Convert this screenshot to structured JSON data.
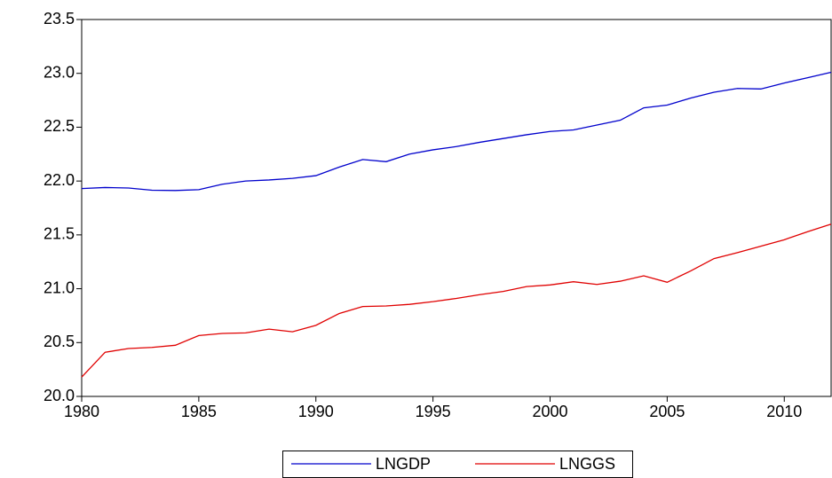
{
  "chart_data": {
    "type": "line",
    "x": [
      1980,
      1981,
      1982,
      1983,
      1984,
      1985,
      1986,
      1987,
      1988,
      1989,
      1990,
      1991,
      1992,
      1993,
      1994,
      1995,
      1996,
      1997,
      1998,
      1999,
      2000,
      2001,
      2002,
      2003,
      2004,
      2005,
      2006,
      2007,
      2008,
      2009,
      2010,
      2011,
      2012
    ],
    "series": [
      {
        "name": "LNGDP",
        "color": "#0000cc",
        "values": [
          21.93,
          21.94,
          21.935,
          21.915,
          21.912,
          21.92,
          21.97,
          22.0,
          22.01,
          22.025,
          22.05,
          22.13,
          22.2,
          22.18,
          22.25,
          22.29,
          22.32,
          22.36,
          22.395,
          22.43,
          22.46,
          22.475,
          22.52,
          22.565,
          22.68,
          22.705,
          22.77,
          22.825,
          22.86,
          22.855,
          22.91,
          22.96,
          23.01
        ]
      },
      {
        "name": "LNGGS",
        "color": "#e00000",
        "values": [
          20.18,
          20.41,
          20.445,
          20.455,
          20.475,
          20.565,
          20.585,
          20.59,
          20.625,
          20.6,
          20.66,
          20.77,
          20.835,
          20.84,
          20.855,
          20.88,
          20.91,
          20.945,
          20.975,
          21.02,
          21.035,
          21.065,
          21.04,
          21.07,
          21.12,
          21.06,
          21.165,
          21.28,
          21.335,
          21.395,
          21.455,
          21.53,
          21.6
        ]
      }
    ],
    "xlim": [
      1980,
      2012
    ],
    "xticks": [
      1980,
      1985,
      1990,
      1995,
      2000,
      2005,
      2010
    ],
    "ylim": [
      20.0,
      23.5
    ],
    "yticks": [
      {
        "value": 20.0,
        "label": "20.0"
      },
      {
        "value": 20.5,
        "label": "20.5"
      },
      {
        "value": 21.0,
        "label": "21.0"
      },
      {
        "value": 21.5,
        "label": "21.5"
      },
      {
        "value": 22.0,
        "label": "22.0"
      },
      {
        "value": 22.5,
        "label": "22.5"
      },
      {
        "value": 23.0,
        "label": "23.0"
      },
      {
        "value": 23.5,
        "label": "23.5"
      }
    ],
    "legend": "bottom"
  }
}
